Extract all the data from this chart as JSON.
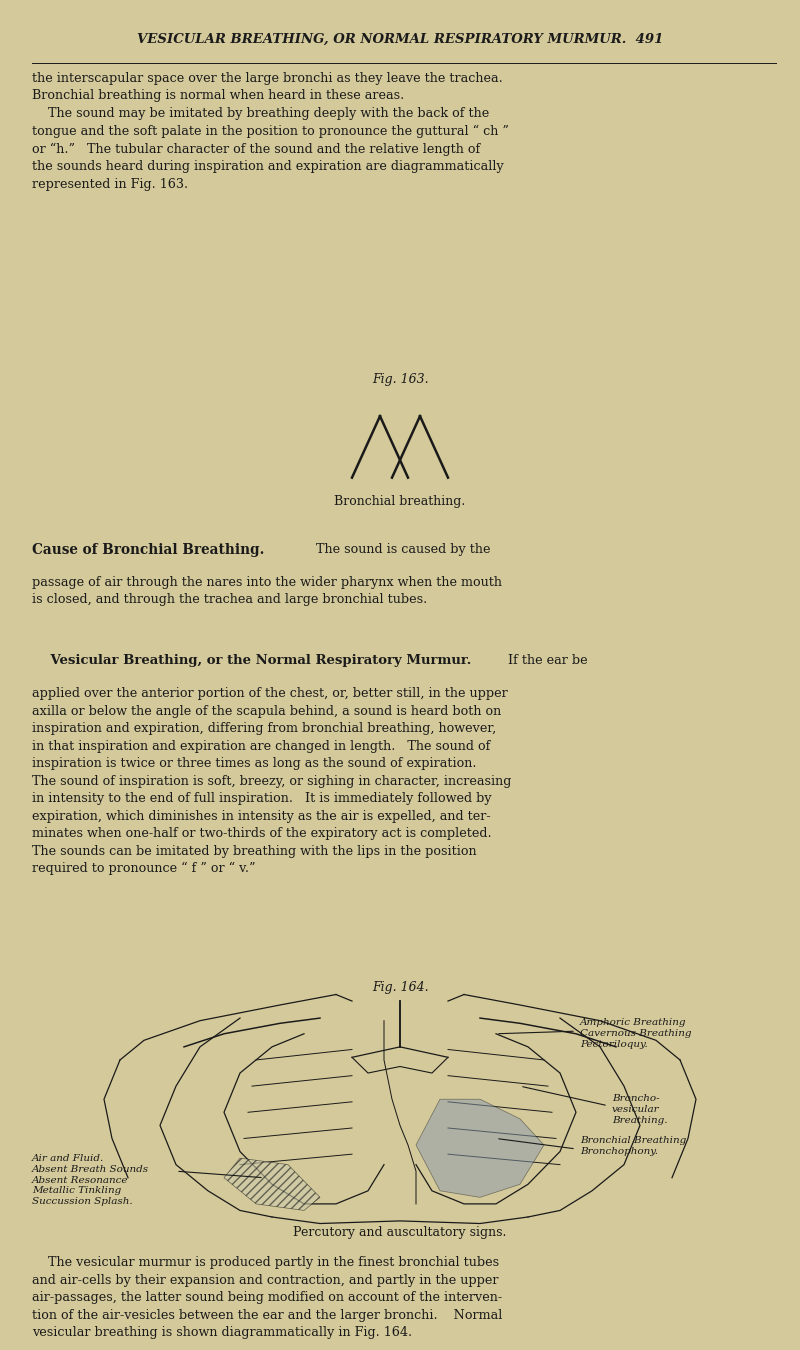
{
  "bg_color": "#d4c99a",
  "text_color": "#1a1a1a",
  "page_width": 8.0,
  "page_height": 13.5,
  "header": "VESICULAR BREATHING, OR NORMAL RESPIRATORY MURMUR.  491",
  "para1": "the interscapular space over the large bronchi as they leave the trachea.\nBronchial breathing is normal when heard in these areas.\n    The sound may be imitated by breathing deeply with the back of the\ntongue and the soft palate in the position to pronounce the guttural “ ch ”\nor “h.”   The tubular character of the sound and the relative length of\nthe sounds heard during inspiration and expiration are diagrammatically\nrepresented in Fig. 163.",
  "fig163_label": "Fig. 163.",
  "fig163_caption": "Bronchial breathing.",
  "para2_head": "Cause of Bronchial Breathing.",
  "para2": "  The sound is caused by the passage of air through the nares into the wider pharynx when the mouth is closed, and through the trachea and large bronchial tubes.",
  "para3_head": "Vesicular Breathing, or the Normal Respiratory Murmur.",
  "para3": "  If the ear be applied over the anterior portion of the chest, or, better still, in the upper axilla or below the angle of the scapula behind, a sound is heard both on inspiration and expiration, differing from bronchial breathing, however, in that inspiration and expiration are changed in length.   The sound of inspiration is twice or three times as long as the sound of expiration. The sound of inspiration is soft, breezy, or sighing in character, increasing in intensity to the end of full inspiration.   It is immediately followed by expiration, which diminishes in intensity as the air is expelled, and ter-minates when one-half or two-thirds of the expiratory act is completed. The sounds can be imitated by breathing with the lips in the position required to pronounce “ f ” or “ v.”",
  "fig164_label": "Fig. 164.",
  "fig164_caption": "Percutory and auscultatory signs.",
  "para4": "    The vesicular murmur is produced partly in the finest bronchial tubes and air-cells by their expansion and contraction, and partly in the upper air-passages, the latter sound being modified on account of the interven-tion of the air-vesicles between the ear and the larger bronchi.    Normal vesicular breathing is shown diagrammatically in Fig. 164.",
  "label_amphoric": "Amphoric Breathing\nCavernous Breathing\nPectoriloquy.",
  "label_broncho": "Broncho-\nvesicular\nBreathing.",
  "label_bronchial": "Bronchial Breathing\nBronchophony.",
  "label_air": "Air and Fluid.\nAbsent Breath Sounds\nAbsent Resonance\nMetallic Tinkling\nSuccussion Splash."
}
